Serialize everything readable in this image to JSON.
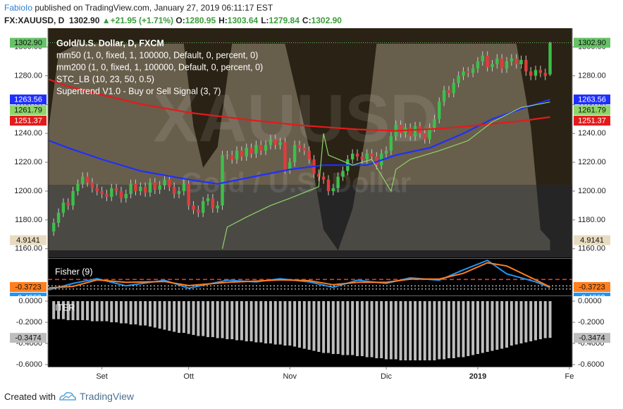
{
  "header": {
    "author": "FabioIo",
    "published": "published on TradingView.com, January 27, 2019 06:11:17 EST",
    "symbol": "FX:XAUUSD, D",
    "last": "1302.90",
    "arrow": "▲",
    "change": "+21.95 (+1.71%)",
    "ohlc": [
      {
        "label": "O:",
        "value": "1280.95"
      },
      {
        "label": "H:",
        "value": "1303.64"
      },
      {
        "label": "L:",
        "value": "1279.84"
      },
      {
        "label": "C:",
        "value": "1302.90"
      }
    ]
  },
  "footer": {
    "created": "Created with",
    "brand": "TradingView"
  },
  "chart_data": [
    {
      "type": "candlestick",
      "title": "Gold/U.S. Dollar, D, FXCM",
      "watermark": "XAUUSD",
      "watermark_subtitle": "Gold / U.S. Dollar",
      "up_color": "#3cc04a",
      "down_color": "#e03c3c",
      "wick_color": "#c8c8c8",
      "open": [
        1172,
        1178,
        1185,
        1192,
        1190,
        1200,
        1205,
        1210,
        1206,
        1202,
        1200,
        1198,
        1196,
        1202,
        1200,
        1195,
        1198,
        1205,
        1200,
        1203,
        1199,
        1206,
        1201,
        1204,
        1208,
        1203,
        1198,
        1200,
        1205,
        1190,
        1187,
        1185,
        1193,
        1195,
        1188,
        1190,
        1225,
        1225,
        1222,
        1228,
        1224,
        1230,
        1226,
        1232,
        1228,
        1232,
        1236,
        1232,
        1234,
        1215,
        1220,
        1232,
        1230,
        1228,
        1222,
        1212,
        1210,
        1208,
        1200,
        1202,
        1210,
        1214,
        1222,
        1226,
        1224,
        1222,
        1226,
        1224,
        1218,
        1226,
        1228,
        1238,
        1246,
        1240,
        1244,
        1238,
        1245,
        1240,
        1236,
        1244,
        1250,
        1262,
        1270,
        1268,
        1275,
        1280,
        1283,
        1282,
        1285,
        1290,
        1294,
        1286,
        1288,
        1292,
        1285,
        1290,
        1292,
        1288,
        1291,
        1283,
        1280,
        1284,
        1282,
        1280.95
      ],
      "high": [
        1181,
        1188,
        1195,
        1195,
        1203,
        1208,
        1213,
        1213,
        1209,
        1205,
        1203,
        1201,
        1205,
        1205,
        1203,
        1201,
        1208,
        1208,
        1206,
        1206,
        1209,
        1209,
        1207,
        1211,
        1211,
        1206,
        1203,
        1208,
        1208,
        1193,
        1190,
        1196,
        1198,
        1198,
        1193,
        1228,
        1228,
        1228,
        1231,
        1231,
        1233,
        1233,
        1235,
        1235,
        1235,
        1239,
        1239,
        1237,
        1237,
        1223,
        1235,
        1235,
        1233,
        1231,
        1225,
        1215,
        1213,
        1211,
        1205,
        1213,
        1217,
        1225,
        1229,
        1229,
        1227,
        1229,
        1229,
        1227,
        1229,
        1231,
        1241,
        1249,
        1249,
        1247,
        1247,
        1248,
        1248,
        1243,
        1247,
        1253,
        1265,
        1273,
        1273,
        1278,
        1283,
        1286,
        1286,
        1288,
        1293,
        1297,
        1297,
        1291,
        1295,
        1295,
        1293,
        1295,
        1295,
        1294,
        1294,
        1286,
        1287,
        1287,
        1285,
        1303.64
      ],
      "low": [
        1169,
        1175,
        1182,
        1187,
        1187,
        1197,
        1202,
        1203,
        1199,
        1197,
        1195,
        1193,
        1193,
        1197,
        1192,
        1192,
        1195,
        1197,
        1197,
        1196,
        1196,
        1198,
        1198,
        1201,
        1200,
        1195,
        1195,
        1197,
        1187,
        1184,
        1182,
        1182,
        1190,
        1185,
        1185,
        1187,
        1222,
        1219,
        1219,
        1221,
        1221,
        1223,
        1223,
        1225,
        1225,
        1229,
        1229,
        1229,
        1212,
        1212,
        1217,
        1227,
        1225,
        1219,
        1209,
        1207,
        1205,
        1197,
        1197,
        1199,
        1207,
        1211,
        1219,
        1221,
        1219,
        1219,
        1221,
        1215,
        1215,
        1223,
        1225,
        1235,
        1237,
        1237,
        1235,
        1235,
        1237,
        1233,
        1233,
        1241,
        1247,
        1259,
        1265,
        1265,
        1272,
        1277,
        1279,
        1279,
        1282,
        1287,
        1283,
        1283,
        1285,
        1282,
        1282,
        1287,
        1285,
        1285,
        1280,
        1277,
        1277,
        1279,
        1277,
        1279.84
      ],
      "close": [
        1178,
        1185,
        1192,
        1190,
        1200,
        1205,
        1210,
        1206,
        1202,
        1200,
        1198,
        1196,
        1202,
        1200,
        1195,
        1198,
        1205,
        1200,
        1203,
        1199,
        1206,
        1201,
        1204,
        1208,
        1203,
        1198,
        1200,
        1205,
        1190,
        1187,
        1185,
        1193,
        1195,
        1188,
        1190,
        1225,
        1225,
        1222,
        1228,
        1224,
        1230,
        1226,
        1232,
        1228,
        1232,
        1236,
        1232,
        1234,
        1215,
        1220,
        1232,
        1230,
        1228,
        1222,
        1212,
        1210,
        1208,
        1200,
        1202,
        1210,
        1214,
        1222,
        1226,
        1224,
        1222,
        1226,
        1224,
        1218,
        1226,
        1228,
        1238,
        1246,
        1240,
        1244,
        1238,
        1245,
        1240,
        1236,
        1244,
        1250,
        1262,
        1270,
        1268,
        1275,
        1280,
        1283,
        1282,
        1285,
        1290,
        1294,
        1286,
        1288,
        1292,
        1285,
        1290,
        1292,
        1288,
        1291,
        1283,
        1280,
        1284,
        1282,
        1280,
        1302.9
      ],
      "last_price": {
        "value": 1302.9,
        "label": "1302.90",
        "color": "#66c266"
      },
      "series": [
        {
          "name": "mm50 (1, 0, fixed, 1, 100000, Default, 0, percent, 0)",
          "color": "#1f2fff",
          "style": "line",
          "x": [
            -1,
            3,
            10,
            18,
            28,
            34,
            40,
            49,
            56,
            65,
            71,
            78,
            85,
            91,
            97,
            103
          ],
          "values": [
            1235,
            1230,
            1222,
            1214,
            1208,
            1205,
            1209,
            1215,
            1218,
            1218,
            1225,
            1230,
            1240,
            1250,
            1257,
            1263.56
          ]
        },
        {
          "name": "mm200 (1, 0, fixed, 1, 100000, Default, 0, percent, 0)",
          "color": "#e31b1b",
          "style": "line",
          "x": [
            -1,
            3,
            10,
            18,
            28,
            40,
            51,
            63,
            71,
            80,
            88,
            97,
            103
          ],
          "values": [
            1277.5,
            1272.6,
            1266.8,
            1260.4,
            1254.5,
            1249.6,
            1245.7,
            1242.8,
            1241.8,
            1243.3,
            1245.7,
            1248.6,
            1251.37
          ]
        },
        {
          "name": "STC_LB (10, 23, 50, 0.5)",
          "color": "#e8dcc0",
          "style": "area",
          "ylim": [
            0,
            100
          ],
          "x": [
            -1,
            1,
            5,
            27,
            29,
            31,
            34,
            37,
            48,
            53,
            56,
            59,
            62,
            65,
            67,
            96,
            99,
            101,
            103
          ],
          "values": [
            60,
            95,
            100,
            100,
            60,
            40,
            50,
            100,
            100,
            50,
            10,
            0,
            20,
            60,
            100,
            100,
            60,
            10,
            4.9141
          ]
        },
        {
          "name": "Supertrend V1.0 - Buy or Sell Signal (3, 7)",
          "color": "#8fd468",
          "style": "line",
          "x": [
            35,
            36,
            40,
            45,
            49,
            55,
            56,
            57,
            62,
            66,
            70,
            71,
            74,
            80,
            86,
            91,
            97,
            103
          ],
          "values": [
            1160,
            1175,
            1182,
            1190,
            1195,
            1203,
            1240,
            1225,
            1218,
            1222,
            1200,
            1215,
            1222,
            1228,
            1235,
            1248,
            1258,
            1261.79
          ]
        }
      ],
      "xlim": [
        -1.2,
        107.6
      ],
      "ylim": [
        1154,
        1313
      ],
      "yticks": [
        {
          "value": 1160,
          "label": "1160.00"
        },
        {
          "value": 1180,
          "label": "1180.00"
        },
        {
          "value": 1200,
          "label": "1200.00"
        },
        {
          "value": 1220,
          "label": "1220.00"
        },
        {
          "value": 1240,
          "label": "1240.00"
        },
        {
          "value": 1260,
          "label": "1260.00"
        },
        {
          "value": 1280,
          "label": "1280.00"
        },
        {
          "value": 1300,
          "label": "1300.00"
        }
      ]
    },
    {
      "type": "line",
      "title": "Fisher (9)",
      "series": [
        {
          "color": "#2196f3",
          "x": [
            -1,
            4,
            9,
            15,
            23,
            28,
            36,
            42,
            47,
            53,
            58,
            63,
            69,
            74,
            80,
            85,
            90,
            94,
            100,
            103
          ],
          "values": [
            -0.72,
            0.07,
            0.65,
            -0.23,
            0.46,
            -0.52,
            0.46,
            0.26,
            0.65,
            0.26,
            -0.42,
            0.46,
            0.07,
            0.75,
            0.46,
            1.73,
            2.9,
            1.24,
            0.26,
            -0.4363
          ]
        },
        {
          "color": "#ff7f1e",
          "x": [
            -1,
            4,
            9,
            15,
            23,
            28,
            36,
            42,
            47,
            53,
            58,
            63,
            69,
            74,
            80,
            85,
            90,
            94,
            100,
            103
          ],
          "values": [
            -0.5,
            -0.3,
            0.5,
            0.2,
            0.3,
            -0.2,
            0.2,
            0.35,
            0.5,
            0.4,
            -0.1,
            0.2,
            0.2,
            0.6,
            0.6,
            1.3,
            2.6,
            2.2,
            0.5,
            -0.3723
          ]
        }
      ],
      "hlines": [
        {
          "value": 0.55,
          "color": "#e53935"
        },
        {
          "value": -0.23,
          "color": "#ffffff"
        },
        {
          "value": -0.62,
          "color": "#ffffff"
        }
      ],
      "xlim": [
        -1.2,
        107.6
      ],
      "ylim": [
        -1.5,
        3
      ]
    },
    {
      "type": "bar",
      "title": "ITER",
      "color": "#bdbdbd",
      "values": [
        -0.17,
        -0.17,
        -0.17,
        -0.18,
        -0.18,
        -0.18,
        -0.18,
        -0.18,
        -0.19,
        -0.19,
        -0.19,
        -0.19,
        -0.2,
        -0.2,
        -0.21,
        -0.21,
        -0.22,
        -0.22,
        -0.23,
        -0.23,
        -0.24,
        -0.25,
        -0.26,
        -0.27,
        -0.28,
        -0.29,
        -0.3,
        -0.3,
        -0.31,
        -0.32,
        -0.33,
        -0.33,
        -0.34,
        -0.34,
        -0.35,
        -0.35,
        -0.36,
        -0.36,
        -0.37,
        -0.37,
        -0.38,
        -0.38,
        -0.39,
        -0.39,
        -0.4,
        -0.4,
        -0.41,
        -0.41,
        -0.42,
        -0.42,
        -0.43,
        -0.44,
        -0.45,
        -0.46,
        -0.47,
        -0.48,
        -0.49,
        -0.49,
        -0.5,
        -0.5,
        -0.51,
        -0.51,
        -0.51,
        -0.52,
        -0.52,
        -0.53,
        -0.53,
        -0.54,
        -0.54,
        -0.55,
        -0.55,
        -0.55,
        -0.56,
        -0.56,
        -0.56,
        -0.56,
        -0.56,
        -0.56,
        -0.56,
        -0.56,
        -0.55,
        -0.55,
        -0.54,
        -0.54,
        -0.53,
        -0.53,
        -0.52,
        -0.51,
        -0.5,
        -0.49,
        -0.48,
        -0.47,
        -0.46,
        -0.45,
        -0.44,
        -0.42,
        -0.41,
        -0.4,
        -0.39,
        -0.38,
        -0.37,
        -0.36,
        -0.35,
        -0.3474
      ],
      "xlim": [
        -1.2,
        107.6
      ],
      "ylim": [
        -0.62,
        0.047
      ],
      "yticks": [
        {
          "value": 0,
          "label": "0.0000"
        },
        {
          "value": -0.2,
          "label": "-0.2000"
        },
        {
          "value": -0.4,
          "label": "-0.4000"
        },
        {
          "value": -0.6,
          "label": "-0.6000"
        }
      ],
      "xticks": [
        {
          "value": 10,
          "label": "Set"
        },
        {
          "value": 28,
          "label": "Ott"
        },
        {
          "value": 49,
          "label": "Nov"
        },
        {
          "value": 69,
          "label": "Dic"
        },
        {
          "value": 88,
          "label": "2019"
        },
        {
          "value": 107,
          "label": "Fe"
        }
      ]
    }
  ]
}
